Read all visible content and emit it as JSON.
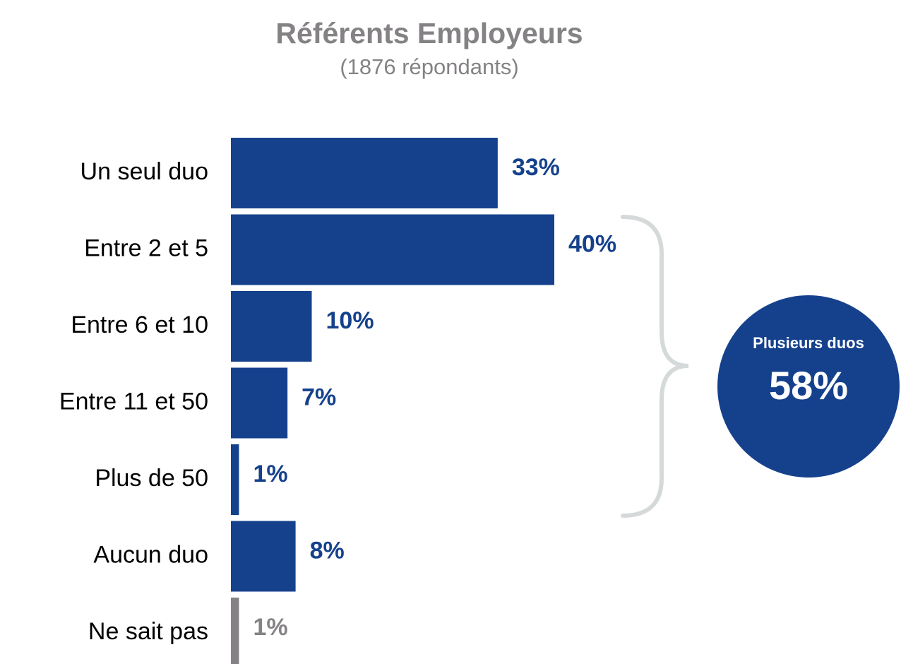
{
  "chart_data": {
    "type": "bar",
    "orientation": "horizontal",
    "title": "Référents Employeurs",
    "subtitle": "(1876 répondants)",
    "categories": [
      "Un seul duo",
      "Entre 2 et 5",
      "Entre 6 et 10",
      "Entre 11 et 50",
      "Plus de 50",
      "Aucun duo",
      "Ne sait pas"
    ],
    "values": [
      33,
      40,
      10,
      7,
      1,
      8,
      1
    ],
    "value_labels": [
      "33%",
      "40%",
      "10%",
      "7%",
      "1%",
      "8%",
      "1%"
    ],
    "colors": [
      "#15418c",
      "#15418c",
      "#15418c",
      "#15418c",
      "#15418c",
      "#15418c",
      "#858285"
    ],
    "annotation": {
      "label": "Plusieurs duos",
      "value": 58,
      "value_label": "58%",
      "color": "#15418c"
    }
  }
}
